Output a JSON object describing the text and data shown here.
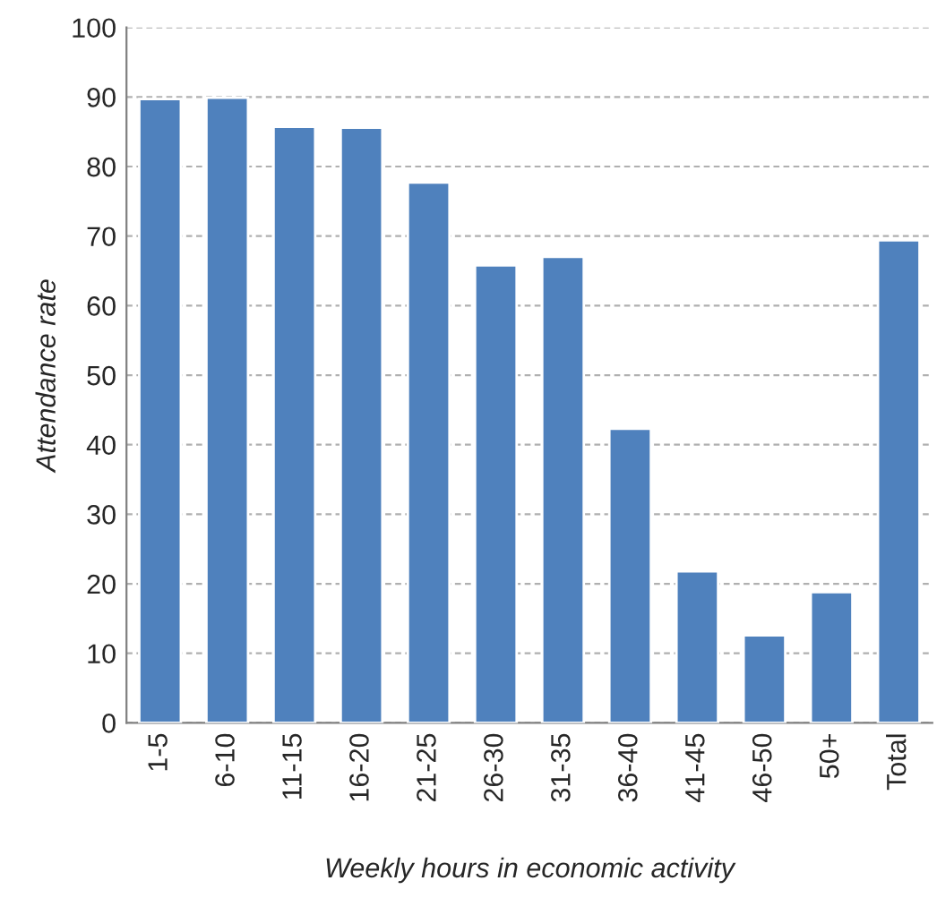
{
  "chart_data": {
    "type": "bar",
    "xlabel": "Weekly hours in economic activity",
    "ylabel": "Attendance rate",
    "categories": [
      "1-5",
      "6-10",
      "11-15",
      "16-20",
      "21-25",
      "26-30",
      "31-35",
      "36-40",
      "41-45",
      "46-50",
      "50+",
      "Total"
    ],
    "values": [
      89.7,
      89.9,
      85.7,
      85.6,
      77.7,
      65.8,
      67.0,
      42.3,
      21.8,
      12.6,
      18.8,
      69.4
    ],
    "color": "#4f81bd",
    "ylim": [
      0,
      100
    ],
    "yticks": [
      0,
      10,
      20,
      30,
      40,
      50,
      60,
      70,
      80,
      90,
      100
    ],
    "grid": "y"
  }
}
